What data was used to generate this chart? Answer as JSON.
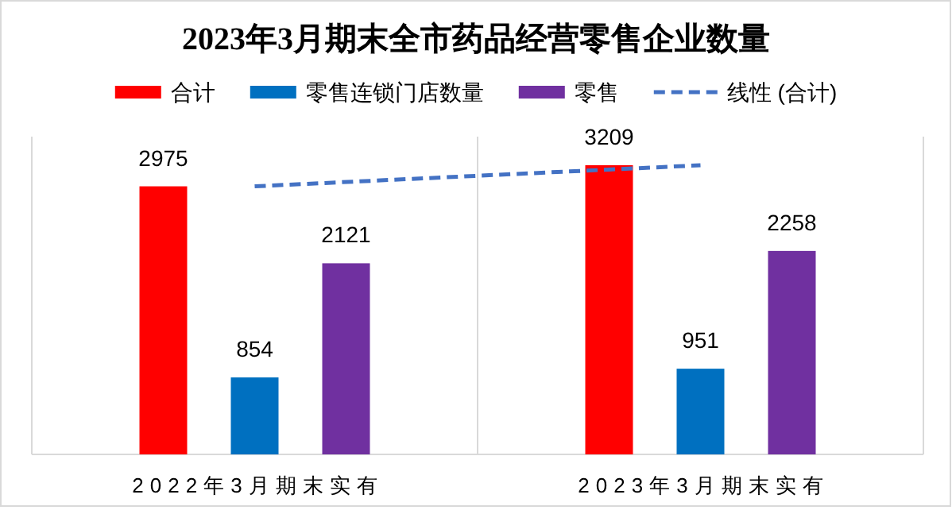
{
  "chart_data": {
    "type": "bar",
    "title": "2023年3月期末全市药品经营零售企业数量",
    "categories": [
      "2022年3月期末实有",
      "2023年3月期末实有"
    ],
    "series": [
      {
        "name": "合计",
        "color": "#ff0000",
        "values": [
          2975,
          3209
        ],
        "value_labels": [
          "2975",
          "3209"
        ]
      },
      {
        "name": "零售连锁门店数量",
        "color": "#0070c0",
        "values": [
          854,
          951
        ],
        "value_labels": [
          "854",
          "951"
        ]
      },
      {
        "name": "零售",
        "color": "#7030a0",
        "values": [
          2121,
          2258
        ],
        "value_labels": [
          "2121",
          "2258"
        ]
      },
      {
        "name": "线性 (合计)",
        "type": "line",
        "color": "#4472c4",
        "line_style": "dashed",
        "values": [
          2975,
          3209
        ]
      }
    ],
    "legend": "top",
    "grid": "x"
  }
}
